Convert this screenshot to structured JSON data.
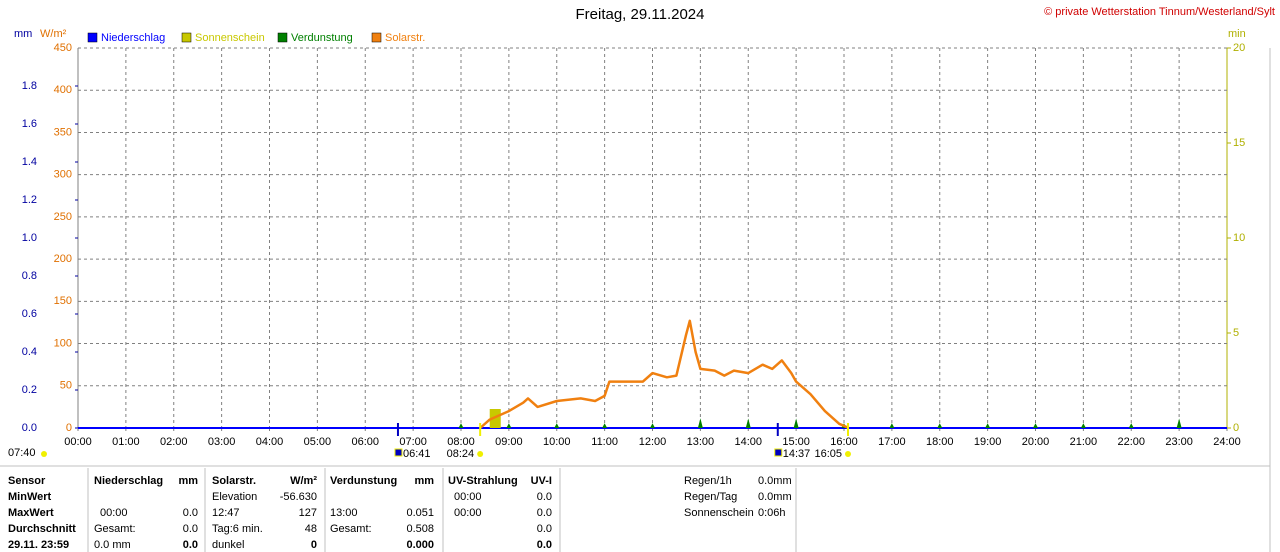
{
  "header": {
    "title": "Freitag, 29.11.2024",
    "copyright": "© private Wetterstation Tinnum/Westerland/Sylt"
  },
  "chart_data": {
    "type": "line",
    "mm_label": "mm",
    "y_label": "W/m²",
    "y2_label": "min",
    "xlim": [
      0,
      24
    ],
    "xticks": [
      {
        "value": 0,
        "label": "00:00"
      },
      {
        "value": 1,
        "label": "01:00"
      },
      {
        "value": 2,
        "label": "02:00"
      },
      {
        "value": 3,
        "label": "03:00"
      },
      {
        "value": 4,
        "label": "04:00"
      },
      {
        "value": 5,
        "label": "05:00"
      },
      {
        "value": 6,
        "label": "06:00"
      },
      {
        "value": 7,
        "label": "07:00"
      },
      {
        "value": 8,
        "label": "08:00"
      },
      {
        "value": 9,
        "label": "09:00"
      },
      {
        "value": 10,
        "label": "10:00"
      },
      {
        "value": 11,
        "label": "11:00"
      },
      {
        "value": 12,
        "label": "12:00"
      },
      {
        "value": 13,
        "label": "13:00"
      },
      {
        "value": 14,
        "label": "14:00"
      },
      {
        "value": 15,
        "label": "15:00"
      },
      {
        "value": 16,
        "label": "16:00"
      },
      {
        "value": 17,
        "label": "17:00"
      },
      {
        "value": 18,
        "label": "18:00"
      },
      {
        "value": 19,
        "label": "19:00"
      },
      {
        "value": 20,
        "label": "20:00"
      },
      {
        "value": 21,
        "label": "21:00"
      },
      {
        "value": 22,
        "label": "22:00"
      },
      {
        "value": 23,
        "label": "23:00"
      },
      {
        "value": 24,
        "label": "24:00"
      }
    ],
    "ylim": [
      0,
      450
    ],
    "yticks": [
      0,
      50,
      100,
      150,
      200,
      250,
      300,
      350,
      400,
      450
    ],
    "mmlim": [
      0,
      2
    ],
    "mmticks": [
      {
        "value": 0,
        "label": "0.0"
      },
      0.2,
      0.4,
      0.6,
      0.8,
      {
        "value": 1,
        "label": "1.0"
      },
      1.2,
      1.4,
      1.6,
      1.8
    ],
    "y2lim": [
      0,
      20
    ],
    "y2ticks": [
      0,
      5,
      10,
      15,
      20
    ],
    "grid": true,
    "series": [
      {
        "name": "Niederschlag",
        "color": "#0000ff",
        "axis": "mm",
        "kind": "line",
        "x": [
          0,
          24
        ],
        "values": [
          0,
          0
        ]
      },
      {
        "name": "Sonnenschein",
        "color": "#c8c800",
        "axis": "y2",
        "kind": "bar",
        "bins": [
          8.6,
          8.83
        ],
        "values": [
          1
        ]
      },
      {
        "name": "Verdunstung",
        "color": "#008000",
        "axis": "mm",
        "kind": "marker",
        "x": [
          8,
          9,
          10,
          11,
          12,
          13,
          14,
          15,
          16,
          17,
          18,
          19,
          20,
          21,
          22,
          23
        ],
        "values": [
          0.025,
          0.025,
          0.025,
          0.025,
          0.025,
          0.051,
          0.05,
          0.05,
          0.025,
          0.025,
          0.025,
          0.025,
          0.025,
          0.025,
          0.025,
          0.05
        ]
      },
      {
        "name": "Solarstr.",
        "color": "#f08010",
        "axis": "y",
        "kind": "line",
        "x": [
          8.4,
          8.6,
          9.0,
          9.3,
          9.4,
          9.6,
          10.0,
          10.5,
          10.8,
          11.0,
          11.1,
          11.5,
          11.8,
          12.0,
          12.3,
          12.5,
          12.7,
          12.78,
          12.9,
          13.0,
          13.3,
          13.5,
          13.7,
          14.0,
          14.3,
          14.5,
          14.7,
          14.9,
          15.0,
          15.3,
          15.6,
          15.9,
          16.1
        ],
        "values": [
          0,
          10,
          20,
          30,
          35,
          25,
          32,
          35,
          32,
          38,
          55,
          55,
          55,
          65,
          60,
          62,
          110,
          127,
          90,
          70,
          68,
          62,
          68,
          65,
          75,
          70,
          80,
          65,
          55,
          40,
          20,
          5,
          0
        ]
      }
    ],
    "day_length": "07:40",
    "events": [
      {
        "x": 6.6833,
        "label": "06:41",
        "color": "#0000c0"
      },
      {
        "x": 8.4,
        "label": "08:24",
        "color": "#f0f000"
      },
      {
        "x": 14.6167,
        "label": "14:37",
        "color": "#0000c0"
      },
      {
        "x": 16.0833,
        "label": "16:05",
        "color": "#f0f000"
      }
    ]
  },
  "table": {
    "labels": [
      "Sensor",
      "MinWert",
      "MaxWert",
      "Durchschnitt",
      "29.11. 23:59"
    ],
    "sections": [
      {
        "header": [
          "Niederschlag",
          "mm"
        ],
        "rows": [
          [
            null,
            null
          ],
          [
            "00:00",
            "0.0"
          ],
          [
            "Gesamt:",
            "0.0"
          ],
          [
            "0.0 mm",
            "0.0"
          ]
        ]
      },
      {
        "header": [
          "Solarstr.",
          "W/m²"
        ],
        "rows": [
          [
            "Elevation",
            "-56.630"
          ],
          [
            "12:47",
            "127"
          ],
          [
            "Tag:6 min.",
            "48"
          ],
          [
            "dunkel",
            "0"
          ]
        ]
      },
      {
        "header": [
          "Verdunstung",
          "mm"
        ],
        "rows": [
          [
            null,
            null
          ],
          [
            "13:00",
            "0.051"
          ],
          [
            "Gesamt:",
            "0.508"
          ],
          [
            null,
            "0.000"
          ]
        ]
      },
      {
        "header": [
          "UV-Strahlung",
          "UV-I"
        ],
        "rows": [
          [
            "00:00",
            "0.0"
          ],
          [
            "00:00",
            "0.0"
          ],
          [
            null,
            "0.0"
          ],
          [
            null,
            "0.0"
          ]
        ]
      }
    ],
    "summary": [
      [
        "Regen/1h",
        "0.0mm"
      ],
      [
        "Regen/Tag",
        "0.0mm"
      ],
      [
        "Sonnenschein",
        "0:06h"
      ]
    ]
  }
}
